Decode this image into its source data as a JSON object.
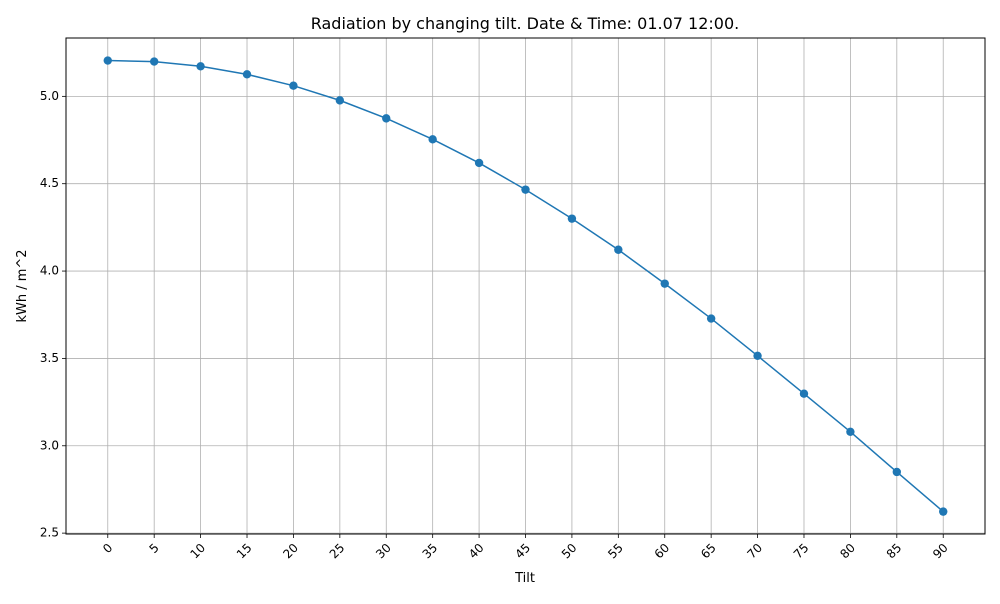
{
  "chart_data": {
    "type": "line",
    "title": "Radiation by changing tilt. Date & Time: 01.07 12:00.",
    "xlabel": "Tilt",
    "ylabel": "kWh / m^2",
    "x": [
      0,
      5,
      10,
      15,
      20,
      25,
      30,
      35,
      40,
      45,
      50,
      55,
      60,
      65,
      70,
      75,
      80,
      85,
      90
    ],
    "x_tick_labels": [
      "0",
      "5",
      "10",
      "15",
      "20",
      "25",
      "30",
      "35",
      "40",
      "45",
      "50",
      "55",
      "60",
      "65",
      "70",
      "75",
      "80",
      "85",
      "90"
    ],
    "y_ticks": [
      2.5,
      3.0,
      3.5,
      4.0,
      4.5,
      5.0
    ],
    "y_tick_labels": [
      "2.5",
      "3.0",
      "3.5",
      "4.0",
      "4.5",
      "5.0"
    ],
    "series": [
      {
        "values": [
          5.205,
          5.199,
          5.172,
          5.126,
          5.061,
          4.977,
          4.874,
          4.754,
          4.619,
          4.466,
          4.3,
          4.122,
          3.928,
          3.728,
          3.515,
          3.298,
          3.08,
          2.85,
          2.623
        ],
        "color": "#1f77b4",
        "marker": "circle"
      }
    ],
    "xlim": [
      -4.5,
      94.5
    ],
    "ylim": [
      2.495,
      5.334
    ],
    "x_tick_rotation": 45,
    "grid": true
  }
}
